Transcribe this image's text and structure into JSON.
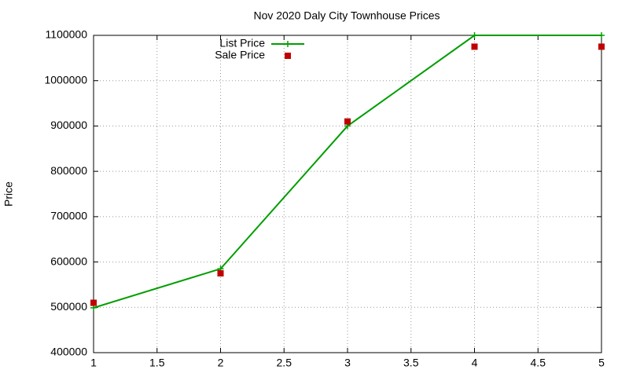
{
  "chart_data": {
    "type": "line",
    "title": "Nov 2020 Daly City Townhouse Prices",
    "y_label": "Price",
    "x": [
      1,
      2,
      3,
      4,
      5
    ],
    "series": [
      {
        "name": "List Price",
        "color": "#009e00",
        "style": "linespoints",
        "values": [
          499000,
          585000,
          900000,
          1100000,
          1100000
        ]
      },
      {
        "name": "Sale Price",
        "color": "#c00000",
        "style": "points",
        "values": [
          510000,
          575000,
          910000,
          1075000,
          1075000
        ]
      }
    ],
    "xlim": [
      1,
      5
    ],
    "xticks": [
      1,
      1.5,
      2,
      2.5,
      3,
      3.5,
      4,
      4.5,
      5
    ],
    "ylim": [
      400000,
      1100000
    ],
    "yticks": [
      400000,
      500000,
      600000,
      700000,
      800000,
      900000,
      1000000,
      1100000
    ],
    "grid": true,
    "legend": "top-left"
  }
}
